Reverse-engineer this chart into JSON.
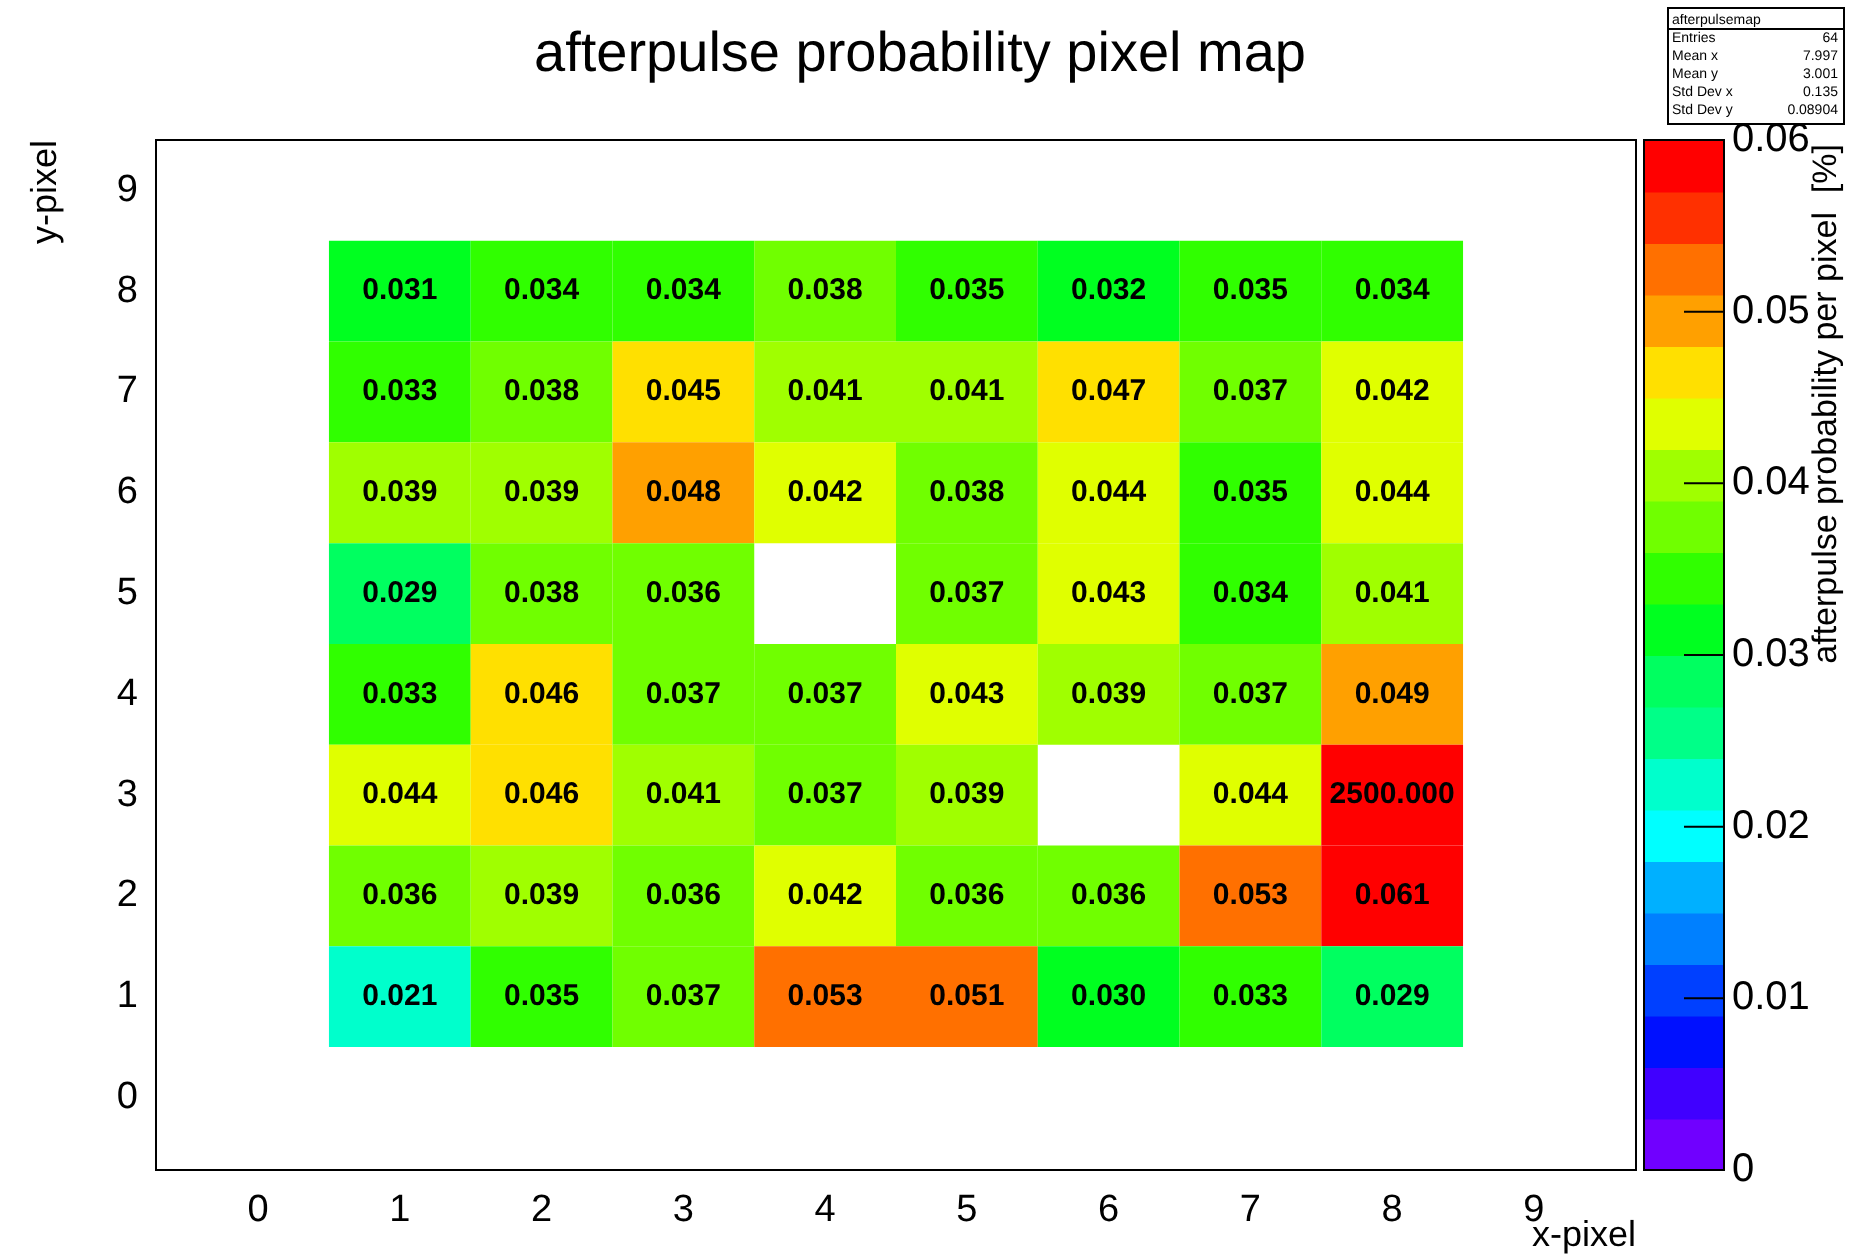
{
  "chart_data": {
    "type": "heatmap",
    "title": "afterpulse probability pixel map",
    "xlabel": "x-pixel",
    "ylabel": "y-pixel",
    "clabel": "afterpulse probability per pixel  [%]",
    "categories": [
      "0",
      "1",
      "2",
      "3",
      "4",
      "5",
      "6",
      "7",
      "8",
      "9"
    ],
    "y_categories": [
      "9",
      "8",
      "7",
      "6",
      "5",
      "4",
      "3",
      "2",
      "1",
      "0"
    ],
    "cells": [
      [
        null,
        null,
        null,
        null,
        null,
        null,
        null,
        null,
        null,
        null
      ],
      [
        null,
        0.031,
        0.034,
        0.034,
        0.038,
        0.035,
        0.032,
        0.035,
        0.034,
        null
      ],
      [
        null,
        0.033,
        0.038,
        0.045,
        0.041,
        0.041,
        0.047,
        0.037,
        0.042,
        null
      ],
      [
        null,
        0.039,
        0.039,
        0.048,
        0.042,
        0.038,
        0.044,
        0.035,
        0.044,
        null
      ],
      [
        null,
        0.029,
        0.038,
        0.036,
        null,
        0.037,
        0.043,
        0.034,
        0.041,
        null
      ],
      [
        null,
        0.033,
        0.046,
        0.037,
        0.037,
        0.043,
        0.039,
        0.037,
        0.049,
        null
      ],
      [
        null,
        0.044,
        0.046,
        0.041,
        0.037,
        0.039,
        null,
        0.044,
        2500,
        null
      ],
      [
        null,
        0.036,
        0.039,
        0.036,
        0.042,
        0.036,
        0.036,
        0.053,
        0.061,
        null
      ],
      [
        null,
        0.021,
        0.035,
        0.037,
        0.053,
        0.051,
        0.03,
        0.033,
        0.029,
        null
      ],
      [
        null,
        null,
        null,
        null,
        null,
        null,
        null,
        null,
        null,
        null
      ]
    ],
    "cell_labels": [
      [
        null,
        null,
        null,
        null,
        null,
        null,
        null,
        null,
        null,
        null
      ],
      [
        null,
        "0.031",
        "0.034",
        "0.034",
        "0.038",
        "0.035",
        "0.032",
        "0.035",
        "0.034",
        null
      ],
      [
        null,
        "0.033",
        "0.038",
        "0.045",
        "0.041",
        "0.041",
        "0.047",
        "0.037",
        "0.042",
        null
      ],
      [
        null,
        "0.039",
        "0.039",
        "0.048",
        "0.042",
        "0.038",
        "0.044",
        "0.035",
        "0.044",
        null
      ],
      [
        null,
        "0.029",
        "0.038",
        "0.036",
        null,
        "0.037",
        "0.043",
        "0.034",
        "0.041",
        null
      ],
      [
        null,
        "0.033",
        "0.046",
        "0.037",
        "0.037",
        "0.043",
        "0.039",
        "0.037",
        "0.049",
        null
      ],
      [
        null,
        "0.044",
        "0.046",
        "0.041",
        "0.037",
        "0.039",
        null,
        "0.044",
        "2500.000",
        null
      ],
      [
        null,
        "0.036",
        "0.039",
        "0.036",
        "0.042",
        "0.036",
        "0.036",
        "0.053",
        "0.061",
        null
      ],
      [
        null,
        "0.021",
        "0.035",
        "0.037",
        "0.053",
        "0.051",
        "0.030",
        "0.033",
        "0.029",
        null
      ],
      [
        null,
        null,
        null,
        null,
        null,
        null,
        null,
        null,
        null,
        null
      ]
    ],
    "clim": [
      0,
      0.06
    ],
    "cticks": [
      0,
      0.01,
      0.02,
      0.03,
      0.04,
      0.05,
      0.06
    ],
    "annotations": [
      "afterpulsemap",
      "Entries 64",
      "Mean x 7.997",
      "Mean y 3.001",
      "Std Dev x 0.135",
      "Std Dev y 0.08904"
    ]
  }
}
